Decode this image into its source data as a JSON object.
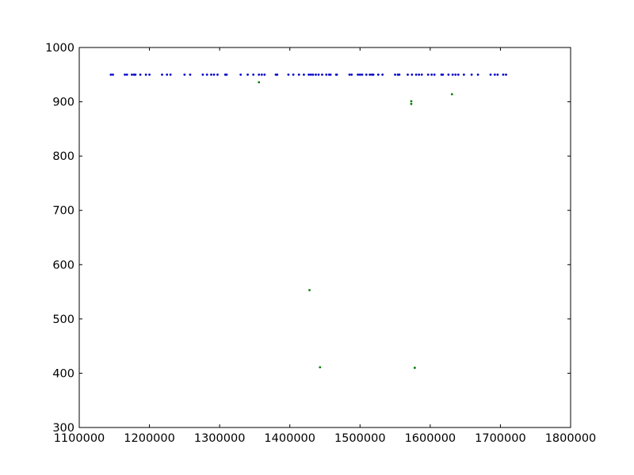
{
  "chart_data": {
    "type": "scatter",
    "title": "",
    "xlabel": "",
    "ylabel": "",
    "xlim": [
      1100000,
      1800000
    ],
    "ylim": [
      300,
      1000
    ],
    "xticks": [
      1100000,
      1200000,
      1300000,
      1400000,
      1500000,
      1600000,
      1700000,
      1800000
    ],
    "yticks": [
      300,
      400,
      500,
      600,
      700,
      800,
      900,
      1000
    ],
    "xtick_labels": [
      "1100000",
      "1200000",
      "1300000",
      "1400000",
      "1500000",
      "1600000",
      "1700000",
      "1800000"
    ],
    "ytick_labels": [
      "300",
      "400",
      "500",
      "600",
      "700",
      "800",
      "900",
      "1000"
    ],
    "grid": false,
    "legend": "none",
    "series": [
      {
        "color": "#0000cc",
        "x": [
          1145000,
          1148000,
          1165000,
          1168000,
          1175000,
          1178000,
          1180000,
          1187000,
          1195000,
          1200000,
          1218000,
          1225000,
          1230000,
          1250000,
          1258000,
          1276000,
          1282000,
          1288000,
          1292000,
          1297000,
          1308000,
          1310000,
          1330000,
          1340000,
          1348000,
          1356000,
          1360000,
          1364000,
          1380000,
          1382000,
          1398000,
          1405000,
          1413000,
          1420000,
          1427000,
          1430000,
          1433000,
          1437000,
          1441000,
          1446000,
          1452000,
          1456000,
          1458000,
          1466000,
          1467000,
          1485000,
          1488000,
          1497000,
          1500000,
          1503000,
          1509000,
          1514000,
          1517000,
          1519000,
          1526000,
          1532000,
          1550000,
          1554000,
          1556000,
          1568000,
          1574000,
          1580000,
          1584000,
          1588000,
          1597000,
          1602000,
          1606000,
          1616000,
          1618000,
          1626000,
          1632000,
          1636000,
          1640000,
          1648000,
          1659000,
          1668000,
          1686000,
          1692000,
          1696000,
          1704000,
          1708000
        ],
        "y": [
          950,
          950,
          950,
          950,
          950,
          950,
          950,
          950,
          950,
          950,
          950,
          950,
          950,
          950,
          950,
          950,
          950,
          950,
          950,
          950,
          950,
          950,
          950,
          950,
          950,
          950,
          950,
          950,
          950,
          950,
          950,
          950,
          950,
          950,
          950,
          950,
          950,
          950,
          950,
          950,
          950,
          950,
          950,
          950,
          950,
          950,
          950,
          950,
          950,
          950,
          950,
          950,
          950,
          950,
          950,
          950,
          950,
          950,
          950,
          950,
          950,
          950,
          950,
          950,
          950,
          950,
          950,
          950,
          950,
          950,
          950,
          950,
          950,
          950,
          950,
          950,
          950,
          950,
          950,
          950,
          950
        ]
      },
      {
        "color": "#008000",
        "x": [
          1356000,
          1428000,
          1443000,
          1573000,
          1573000,
          1578000,
          1631000
        ],
        "y": [
          936,
          553,
          411,
          901,
          896,
          410,
          914
        ]
      }
    ]
  }
}
